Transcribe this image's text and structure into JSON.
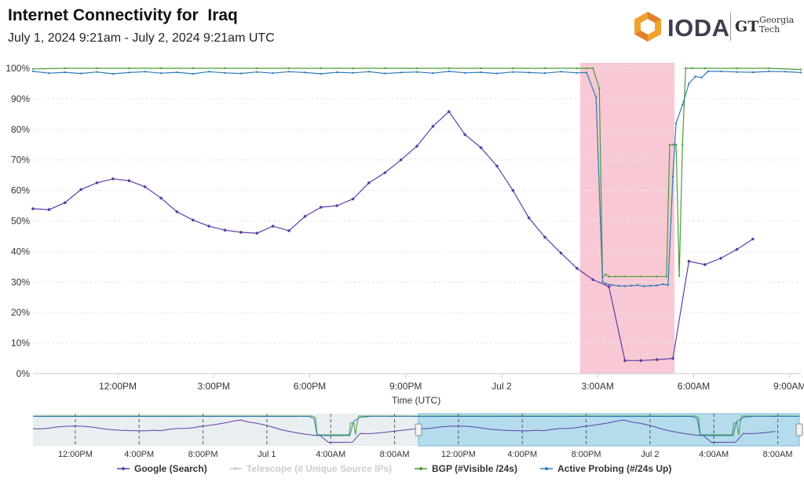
{
  "header": {
    "title": "Internet Connectivity for  Iraq",
    "subtitle": "July 1, 2024 9:21am - July 2, 2024 9:21am UTC",
    "logo_text": "IODA",
    "partner_mark": "GT",
    "partner_line1": "Georgia",
    "partner_line2": "Tech"
  },
  "chart_data": {
    "type": "line",
    "xlabel": "Time (UTC)",
    "ylabel": "",
    "ylim": [
      0,
      100
    ],
    "yticks": [
      "0%",
      "10%",
      "20%",
      "30%",
      "40%",
      "50%",
      "60%",
      "70%",
      "80%",
      "90%",
      "100%"
    ],
    "xlim": [
      0,
      24
    ],
    "x_unit": "hours since July 1, 2024 9:21am UTC",
    "xticks": [
      {
        "x": 2.65,
        "label": "12:00PM"
      },
      {
        "x": 5.65,
        "label": "3:00PM"
      },
      {
        "x": 8.65,
        "label": "6:00PM"
      },
      {
        "x": 11.65,
        "label": "9:00PM"
      },
      {
        "x": 14.65,
        "label": "Jul 2"
      },
      {
        "x": 17.65,
        "label": "3:00AM"
      },
      {
        "x": 20.65,
        "label": "6:00AM"
      },
      {
        "x": 23.65,
        "label": "9:00AM"
      }
    ],
    "grid": true,
    "highlight": {
      "start": 17.1,
      "end": 20.05,
      "color": "#f8c9d4"
    },
    "series": [
      {
        "name": "Google (Search)",
        "color": "#5c3fa8",
        "visible": true,
        "x": [
          0.0,
          0.5,
          1.0,
          1.5,
          2.0,
          2.5,
          3.0,
          3.5,
          4.0,
          4.5,
          5.0,
          5.5,
          6.0,
          6.5,
          7.0,
          7.5,
          8.0,
          8.5,
          9.0,
          9.5,
          10.0,
          10.5,
          11.0,
          11.5,
          12.0,
          12.5,
          13.0,
          13.5,
          14.0,
          14.5,
          15.0,
          15.5,
          16.0,
          16.5,
          17.0,
          17.5,
          18.0,
          18.5,
          19.0,
          19.5,
          20.0,
          20.5,
          21.0,
          21.5,
          22.0,
          22.5
        ],
        "y": [
          54,
          53.7,
          56,
          60.3,
          62.5,
          63.8,
          63.2,
          61.2,
          57.5,
          53,
          50.3,
          48.3,
          47,
          46.3,
          46,
          48.3,
          46.8,
          51.5,
          54.5,
          55,
          57.2,
          62.5,
          65.8,
          70,
          74.5,
          81,
          85.8,
          78.3,
          74,
          68,
          60,
          51,
          44.7,
          39.5,
          34.5,
          30.8,
          28.5,
          4.3,
          4.3,
          4.6,
          5,
          36.8,
          35.7,
          37.8,
          40.7,
          44.1
        ]
      },
      {
        "name": "Telescope (# Unique Source IPs)",
        "color": "#cccccc",
        "visible": false,
        "x": [],
        "y": []
      },
      {
        "name": "BGP (#Visible /24s)",
        "color": "#4a9d35",
        "visible": true,
        "x": [
          0,
          1,
          2,
          3,
          4,
          5,
          6,
          7,
          8,
          9,
          10,
          11,
          12,
          13,
          14,
          15,
          16,
          17,
          17.3,
          17.5,
          17.7,
          17.8,
          17.9,
          18.0,
          18.2,
          18.5,
          19.0,
          19.5,
          19.8,
          19.9,
          20.0,
          20.1,
          20.2,
          20.3,
          20.4,
          20.6,
          21,
          22,
          23,
          24
        ],
        "y": [
          99.8,
          100,
          100,
          100,
          100,
          100,
          100,
          100,
          100,
          100,
          100,
          100,
          100,
          100,
          100,
          100,
          100,
          100,
          100,
          100,
          93.5,
          31.5,
          32.5,
          31.8,
          31.8,
          31.8,
          31.8,
          31.8,
          31.8,
          75,
          75,
          75,
          32,
          75,
          100,
          100,
          100,
          100,
          100,
          99.6
        ]
      },
      {
        "name": "Active Probing (#/24s Up)",
        "color": "#2f7bb6",
        "visible": true,
        "x": [
          0,
          0.5,
          1,
          1.5,
          2,
          2.5,
          3,
          3.5,
          4,
          4.5,
          5,
          5.5,
          6,
          6.5,
          7,
          7.5,
          8,
          8.5,
          9,
          9.5,
          10,
          10.5,
          11,
          11.5,
          12,
          12.5,
          13,
          13.5,
          14,
          14.5,
          15,
          15.5,
          16,
          16.5,
          17.0,
          17.3,
          17.6,
          17.8,
          17.9,
          18.1,
          18.3,
          18.5,
          18.7,
          18.9,
          19.1,
          19.3,
          19.5,
          19.7,
          19.85,
          20.0,
          20.1,
          20.3,
          20.5,
          20.7,
          20.9,
          21.1,
          21.5,
          22,
          22.5,
          23,
          23.5,
          24
        ],
        "y": [
          99,
          98.4,
          98.7,
          98.3,
          98.8,
          98.2,
          98.6,
          98.9,
          98.4,
          98.7,
          98.2,
          98.9,
          98.5,
          98.3,
          98.8,
          98.4,
          98.9,
          98.6,
          98.2,
          98.7,
          98.5,
          98.9,
          98.3,
          98.6,
          98.8,
          98.4,
          99,
          98.5,
          98.7,
          98.3,
          98.8,
          98.6,
          98.4,
          98.9,
          98.5,
          98.6,
          90.5,
          30.1,
          29.5,
          29,
          28.8,
          28.7,
          28.8,
          29,
          28.6,
          28.8,
          28.9,
          29.3,
          29,
          64.5,
          82,
          88,
          95,
          97.3,
          97,
          99,
          99,
          98.8,
          98.7,
          99,
          98.9,
          98.6
        ]
      }
    ],
    "navigator": {
      "xticks": [
        "12:00PM",
        "4:00PM",
        "8:00PM",
        "Jul 1",
        "4:00AM",
        "8:00AM",
        "12:00PM",
        "4:00PM",
        "8:00PM",
        "Jul 2",
        "4:00AM",
        "8:00AM"
      ]
    }
  },
  "legend": {
    "items": [
      {
        "label": "Google (Search)",
        "color": "#5c3fa8",
        "enabled": true
      },
      {
        "label": "Telescope (# Unique Source IPs)",
        "color": "#cccccc",
        "enabled": false
      },
      {
        "label": "BGP (#Visible /24s)",
        "color": "#4a9d35",
        "enabled": true
      },
      {
        "label": "Active Probing (#/24s Up)",
        "color": "#2f7bb6",
        "enabled": true
      }
    ]
  }
}
